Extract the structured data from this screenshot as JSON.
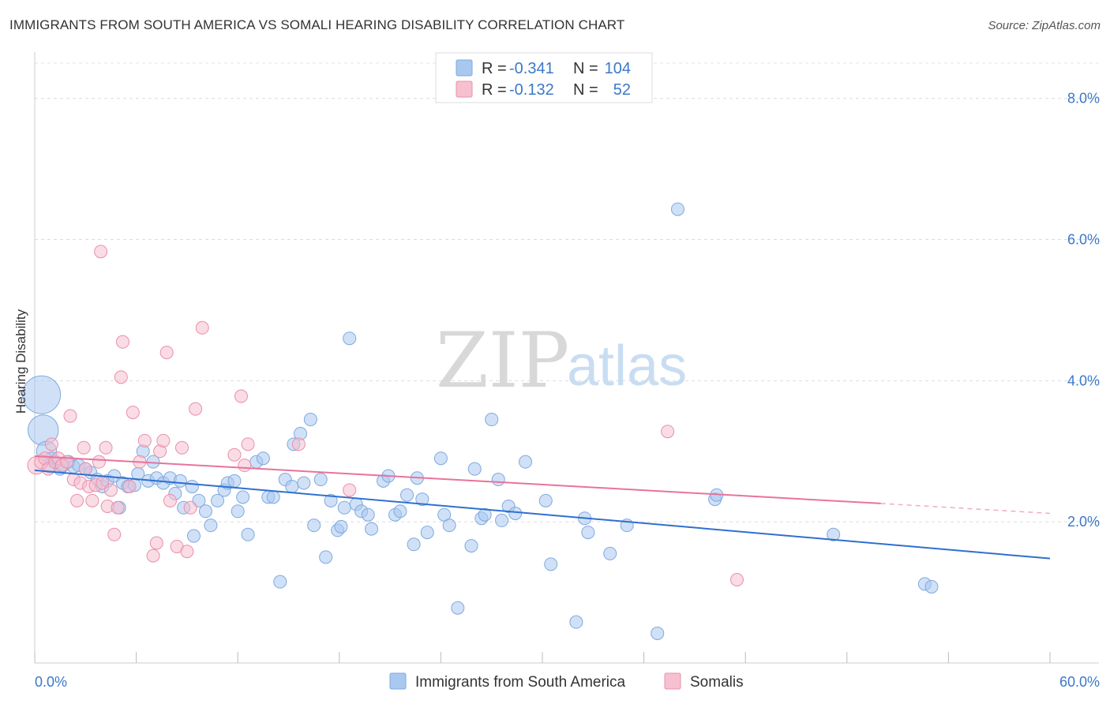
{
  "title": "IMMIGRANTS FROM SOUTH AMERICA VS SOMALI HEARING DISABILITY CORRELATION CHART",
  "source": "Source: ZipAtlas.com",
  "watermark": {
    "zip": "ZIP",
    "atlas": "atlas"
  },
  "legend": {
    "rows": [
      {
        "r_label": "R =",
        "r_value": "-0.341",
        "n_label": "N =",
        "n_value": "104",
        "color": "#a9c8f0",
        "stroke": "#7ea9de"
      },
      {
        "r_label": "R =",
        "r_value": "-0.132",
        "n_label": "N =",
        "n_value": "52",
        "color": "#f6c0d0",
        "stroke": "#e98fab"
      }
    ]
  },
  "bottom_legend": [
    {
      "label": "Immigrants from South America",
      "color": "#a9c8f0",
      "stroke": "#7ea9de"
    },
    {
      "label": "Somalis",
      "color": "#f6c0d0",
      "stroke": "#e98fab"
    }
  ],
  "chart_data": {
    "type": "scatter",
    "title": "IMMIGRANTS FROM SOUTH AMERICA VS SOMALI HEARING DISABILITY CORRELATION CHART",
    "xlabel": "",
    "ylabel": "Hearing Disability",
    "xlim": [
      0,
      60
    ],
    "ylim": [
      0,
      8.5
    ],
    "x_tick_labels": [
      "0.0%",
      "60.0%"
    ],
    "y_ticks": [
      2,
      4,
      6,
      8
    ],
    "y_tick_labels": [
      "2.0%",
      "4.0%",
      "6.0%",
      "8.0%"
    ],
    "grid": true,
    "legend_position": "top-center",
    "series": [
      {
        "name": "Immigrants from South America",
        "color": "#a9c8f0",
        "stroke": "#7ea9de",
        "trend": {
          "x": [
            0,
            60
          ],
          "y": [
            2.73,
            1.48
          ],
          "color": "#2f6fd0"
        },
        "points": [
          [
            0.4,
            3.8,
            3
          ],
          [
            0.5,
            3.3,
            2.4
          ],
          [
            0.7,
            3.0,
            1.6
          ],
          [
            0.9,
            2.8,
            1.2
          ],
          [
            1.0,
            2.9,
            1
          ],
          [
            1.2,
            2.85,
            1
          ],
          [
            1.5,
            2.75,
            1
          ],
          [
            1.7,
            2.8,
            1
          ],
          [
            2.0,
            2.85,
            1
          ],
          [
            2.3,
            2.78,
            1
          ],
          [
            2.6,
            2.8,
            1
          ],
          [
            3.0,
            2.75,
            1
          ],
          [
            3.3,
            2.7,
            1
          ],
          [
            3.7,
            2.6,
            1
          ],
          [
            4.0,
            2.5,
            1
          ],
          [
            4.3,
            2.58,
            1
          ],
          [
            4.7,
            2.65,
            1
          ],
          [
            5.0,
            2.2,
            1
          ],
          [
            5.2,
            2.55,
            1
          ],
          [
            5.5,
            2.5,
            1
          ],
          [
            5.9,
            2.52,
            1
          ],
          [
            6.1,
            2.68,
            1
          ],
          [
            6.4,
            3.0,
            1
          ],
          [
            6.7,
            2.58,
            1
          ],
          [
            7.0,
            2.85,
            1
          ],
          [
            7.2,
            2.62,
            1
          ],
          [
            7.6,
            2.55,
            1
          ],
          [
            8.0,
            2.62,
            1
          ],
          [
            8.3,
            2.4,
            1
          ],
          [
            8.6,
            2.58,
            1
          ],
          [
            8.8,
            2.2,
            1
          ],
          [
            9.3,
            2.5,
            1
          ],
          [
            9.4,
            1.8,
            1
          ],
          [
            9.7,
            2.3,
            1
          ],
          [
            10.1,
            2.15,
            1
          ],
          [
            10.4,
            1.95,
            1
          ],
          [
            10.8,
            2.3,
            1
          ],
          [
            11.2,
            2.45,
            1
          ],
          [
            11.4,
            2.55,
            1
          ],
          [
            11.8,
            2.58,
            1
          ],
          [
            12.0,
            2.15,
            1
          ],
          [
            12.3,
            2.35,
            1
          ],
          [
            12.6,
            1.82,
            1
          ],
          [
            13.1,
            2.85,
            1
          ],
          [
            13.5,
            2.9,
            1
          ],
          [
            13.8,
            2.35,
            1
          ],
          [
            14.1,
            2.35,
            1
          ],
          [
            14.5,
            1.15,
            1
          ],
          [
            14.8,
            2.6,
            1
          ],
          [
            15.2,
            2.5,
            1
          ],
          [
            15.3,
            3.1,
            1
          ],
          [
            15.7,
            3.25,
            1
          ],
          [
            15.9,
            2.55,
            1
          ],
          [
            16.3,
            3.45,
            1
          ],
          [
            16.5,
            1.95,
            1
          ],
          [
            16.9,
            2.6,
            1
          ],
          [
            17.2,
            1.5,
            1
          ],
          [
            17.5,
            2.3,
            1
          ],
          [
            17.9,
            1.88,
            1
          ],
          [
            18.1,
            1.93,
            1
          ],
          [
            18.3,
            2.2,
            1
          ],
          [
            18.6,
            4.6,
            1
          ],
          [
            19.0,
            2.25,
            1
          ],
          [
            19.3,
            2.15,
            1
          ],
          [
            19.7,
            2.1,
            1
          ],
          [
            19.9,
            1.9,
            1
          ],
          [
            20.6,
            2.58,
            1
          ],
          [
            20.9,
            2.65,
            1
          ],
          [
            21.3,
            2.1,
            1
          ],
          [
            21.6,
            2.15,
            1
          ],
          [
            22.0,
            2.38,
            1
          ],
          [
            22.4,
            1.68,
            1
          ],
          [
            22.6,
            2.62,
            1
          ],
          [
            22.9,
            2.32,
            1
          ],
          [
            23.2,
            1.85,
            1
          ],
          [
            24.0,
            2.9,
            1
          ],
          [
            24.2,
            2.1,
            1
          ],
          [
            24.5,
            1.95,
            1
          ],
          [
            25.0,
            0.78,
            1
          ],
          [
            25.8,
            1.66,
            1
          ],
          [
            26.0,
            2.75,
            1
          ],
          [
            26.4,
            2.05,
            1
          ],
          [
            26.6,
            2.1,
            1
          ],
          [
            27.0,
            3.45,
            1
          ],
          [
            27.4,
            2.6,
            1
          ],
          [
            27.6,
            2.02,
            1
          ],
          [
            28.0,
            2.22,
            1
          ],
          [
            28.4,
            2.12,
            1
          ],
          [
            29.0,
            2.85,
            1
          ],
          [
            30.2,
            2.3,
            1
          ],
          [
            30.5,
            1.4,
            1
          ],
          [
            32.0,
            0.58,
            1
          ],
          [
            32.5,
            2.05,
            1
          ],
          [
            32.7,
            1.85,
            1
          ],
          [
            34.0,
            1.55,
            1
          ],
          [
            35.0,
            1.95,
            1
          ],
          [
            36.8,
            0.42,
            1
          ],
          [
            38.0,
            6.43,
            1
          ],
          [
            40.2,
            2.32,
            1
          ],
          [
            40.3,
            2.38,
            1
          ],
          [
            47.2,
            1.82,
            1
          ],
          [
            52.6,
            1.12,
            1
          ],
          [
            53.0,
            1.08,
            1
          ]
        ]
      },
      {
        "name": "Somalis",
        "color": "#f6c0d0",
        "stroke": "#e98fab",
        "trend": {
          "x": [
            0,
            50
          ],
          "y": [
            2.93,
            2.26
          ],
          "dash_to": [
            60,
            2.12
          ],
          "color": "#e8739c"
        },
        "points": [
          [
            0.1,
            2.8,
            1.4
          ],
          [
            0.4,
            2.85,
            1.1
          ],
          [
            0.6,
            2.9,
            1
          ],
          [
            0.8,
            2.75,
            1
          ],
          [
            1.0,
            3.1,
            1
          ],
          [
            1.2,
            2.85,
            1
          ],
          [
            1.4,
            2.9,
            1
          ],
          [
            1.6,
            2.8,
            1
          ],
          [
            1.9,
            2.85,
            1
          ],
          [
            2.1,
            3.5,
            1
          ],
          [
            2.3,
            2.6,
            1
          ],
          [
            2.5,
            2.3,
            1
          ],
          [
            2.7,
            2.55,
            1
          ],
          [
            2.9,
            3.05,
            1
          ],
          [
            3.0,
            2.75,
            1
          ],
          [
            3.2,
            2.5,
            1
          ],
          [
            3.4,
            2.3,
            1
          ],
          [
            3.6,
            2.52,
            1
          ],
          [
            3.8,
            2.85,
            1
          ],
          [
            3.9,
            5.83,
            1
          ],
          [
            4.0,
            2.55,
            1
          ],
          [
            4.2,
            3.05,
            1
          ],
          [
            4.3,
            2.22,
            1
          ],
          [
            4.5,
            2.45,
            1
          ],
          [
            4.7,
            1.82,
            1
          ],
          [
            4.9,
            2.2,
            1
          ],
          [
            5.1,
            4.05,
            1
          ],
          [
            5.2,
            4.55,
            1
          ],
          [
            5.6,
            2.5,
            1
          ],
          [
            5.8,
            3.55,
            1
          ],
          [
            6.2,
            2.85,
            1
          ],
          [
            6.5,
            3.15,
            1
          ],
          [
            7.0,
            1.52,
            1
          ],
          [
            7.2,
            1.7,
            1
          ],
          [
            7.4,
            3.0,
            1
          ],
          [
            7.6,
            3.15,
            1
          ],
          [
            7.8,
            4.4,
            1
          ],
          [
            8.0,
            2.3,
            1
          ],
          [
            8.4,
            1.65,
            1
          ],
          [
            8.7,
            3.05,
            1
          ],
          [
            9.0,
            1.58,
            1
          ],
          [
            9.2,
            2.2,
            1
          ],
          [
            9.5,
            3.6,
            1
          ],
          [
            9.9,
            4.75,
            1
          ],
          [
            11.8,
            2.95,
            1
          ],
          [
            12.2,
            3.78,
            1
          ],
          [
            12.4,
            2.8,
            1
          ],
          [
            12.6,
            3.1,
            1
          ],
          [
            15.6,
            3.1,
            1
          ],
          [
            18.6,
            2.45,
            1
          ],
          [
            37.4,
            3.28,
            1
          ],
          [
            41.5,
            1.18,
            1
          ]
        ]
      }
    ]
  }
}
